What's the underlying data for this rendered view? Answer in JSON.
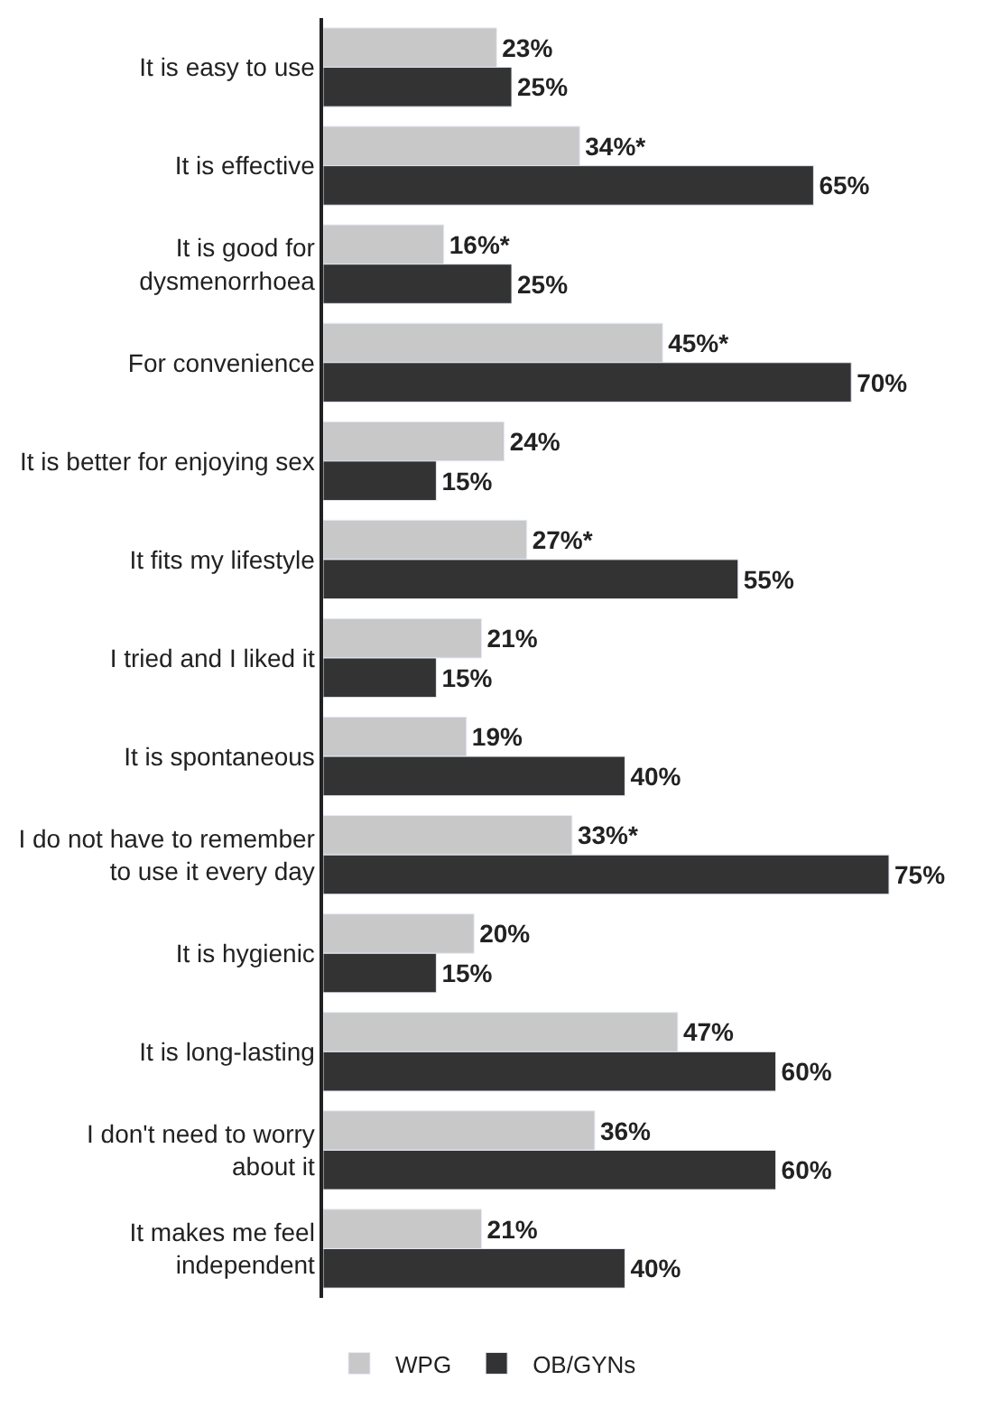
{
  "chart_data": {
    "type": "bar",
    "orientation": "horizontal",
    "categories": [
      "It is easy to use",
      "It is effective",
      "It is good for\ndysmenorrhoea",
      "For convenience",
      "It is better for enjoying sex",
      "It fits my lifestyle",
      "I tried and I liked it",
      "It is spontaneous",
      "I do not have to remember\nto use it every day",
      "It is hygienic",
      "It is long-lasting",
      "I don't need to worry\nabout it",
      "It makes me feel\nindependent"
    ],
    "series": [
      {
        "name": "WPG",
        "color": "#c8c8c8",
        "values": [
          23,
          34,
          16,
          45,
          24,
          27,
          21,
          19,
          33,
          20,
          47,
          36,
          21
        ],
        "value_labels": [
          "23%",
          "34%*",
          "16%*",
          "45%*",
          "24%",
          "27%*",
          "21%",
          "19%",
          "33%*",
          "20%",
          "47%",
          "36%",
          "21%"
        ]
      },
      {
        "name": "OB/GYNs",
        "color": "#333333",
        "values": [
          25,
          65,
          25,
          70,
          15,
          55,
          15,
          40,
          75,
          15,
          60,
          60,
          40
        ],
        "value_labels": [
          "25%",
          "65%",
          "25%",
          "70%",
          "15%",
          "55%",
          "15%",
          "40%",
          "75%",
          "15%",
          "60%",
          "60%",
          "40%"
        ]
      }
    ],
    "tick_labels": "y",
    "legend": "bottom"
  }
}
